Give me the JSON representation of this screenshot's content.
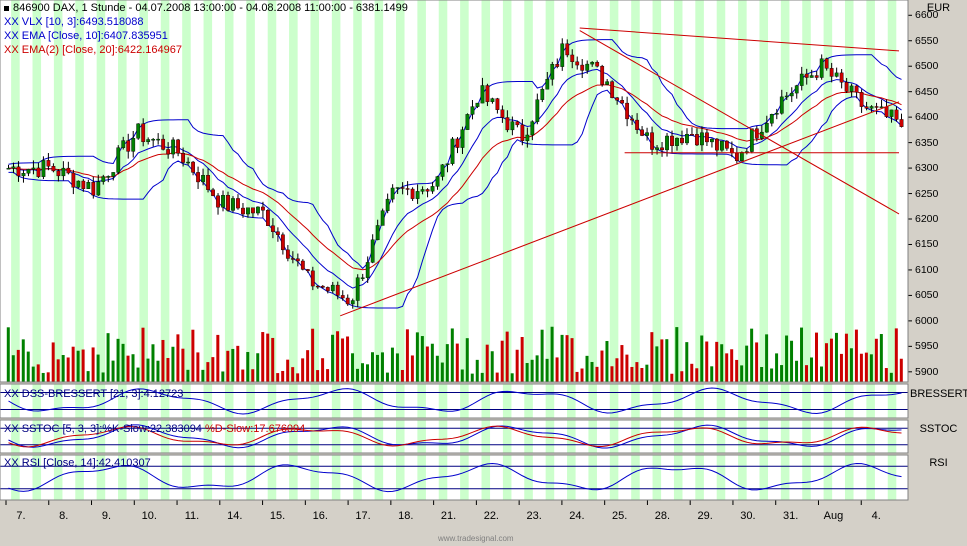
{
  "header": {
    "symbol": "846900",
    "name": "DAX, 1 Stunde - 04.07.2008 13:00:00 - 04.08.2008 11:00:00 - 6381.1499"
  },
  "currency": "EUR",
  "footer": "www.tradesignal.com",
  "panes": {
    "main": {
      "legend": [
        {
          "text": "VLX [10, 3]:6493.518088",
          "color": "#0000cc",
          "marker": "XX"
        },
        {
          "text": "EMA [Close, 10]:6407.835951",
          "color": "#0000cc",
          "marker": "XX"
        },
        {
          "text": "EMA(2) [Close, 20]:6422.164967",
          "color": "#cc0000",
          "marker": "XX"
        }
      ]
    },
    "dss": {
      "legend": "DSS-BRESSERT [21, 3]:4.12723",
      "title": "BRESSERT",
      "marker": "XX"
    },
    "sstoc": {
      "legend_k": "SSTOC [5, 3, 3]:%K-Slow:22.383094",
      "legend_d": "%D-Slow:17.676094",
      "title": "SSTOC",
      "marker": "XX"
    },
    "rsi": {
      "legend": "RSI [Close, 14]:42.410307",
      "title": "RSI",
      "marker": "XX"
    }
  },
  "colors": {
    "up": "#008000",
    "down": "#cc0000",
    "ema10": "#0000cc",
    "ema20": "#cc0000",
    "band": "#0000cc",
    "trend": "#cc0000",
    "stripe": "#ccffcc",
    "bg": "#ffffff"
  },
  "chart_data": {
    "type": "candlestick",
    "title": "846900 DAX, 1 Stunde - 04.07.2008 13:00:00 - 04.08.2008 11:00:00 - 6381.1499",
    "y_ticks": [
      6600,
      6550,
      6500,
      6450,
      6400,
      6350,
      6300,
      6250,
      6200,
      6150,
      6100,
      6050,
      6000,
      5950,
      5900
    ],
    "ylim": [
      5880,
      6630
    ],
    "x_labels": [
      "7.",
      "8.",
      "9.",
      "10.",
      "11.",
      "14.",
      "15.",
      "16.",
      "17.",
      "18.",
      "21.",
      "22.",
      "23.",
      "24.",
      "25.",
      "28.",
      "29.",
      "30.",
      "31.",
      "Aug",
      "4."
    ],
    "day_close": [
      6300,
      6260,
      6370,
      6330,
      6230,
      6210,
      6080,
      6040,
      6250,
      6270,
      6450,
      6360,
      6540,
      6470,
      6350,
      6370,
      6320,
      6430,
      6500,
      6420,
      6381
    ],
    "last": 6381.1499
  }
}
